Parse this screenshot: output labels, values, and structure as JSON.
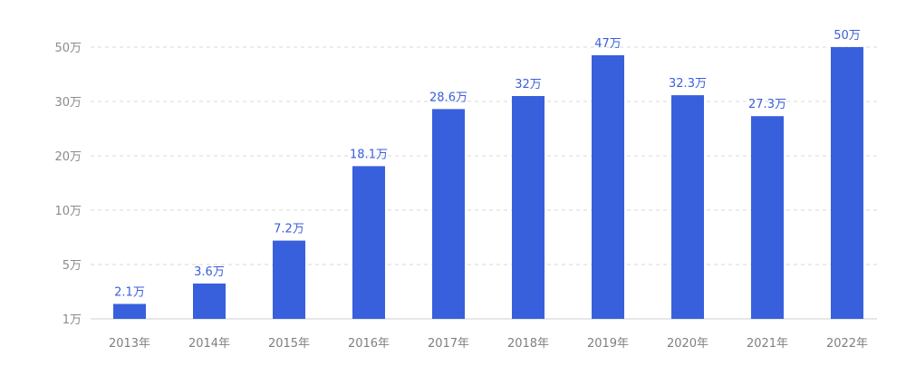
{
  "chart_data": {
    "type": "bar",
    "categories": [
      "2013年",
      "2014年",
      "2015年",
      "2016年",
      "2017年",
      "2018年",
      "2019年",
      "2020年",
      "2021年",
      "2022年"
    ],
    "values": [
      2.1,
      3.6,
      7.2,
      18.1,
      28.6,
      32,
      47,
      32.3,
      27.3,
      50
    ],
    "data_labels": [
      "2.1万",
      "3.6万",
      "7.2万",
      "18.1万",
      "28.6万",
      "32万",
      "47万",
      "32.3万",
      "27.3万",
      "50万"
    ],
    "yticks": [
      {
        "value": 1,
        "label": "1万"
      },
      {
        "value": 5,
        "label": "5万"
      },
      {
        "value": 10,
        "label": "10万"
      },
      {
        "value": 20,
        "label": "20万"
      },
      {
        "value": 30,
        "label": "30万"
      },
      {
        "value": 50,
        "label": "50万"
      }
    ],
    "yaxis_scale": "uneven ticks 1万,5万,10万,20万,30万,50万 at equal spacing",
    "grid": true,
    "colors": {
      "bar": "#3860DD",
      "label": "#3A5FDC",
      "grid": "#D9D9D9",
      "tick": "#8C8C8C"
    },
    "title": "",
    "xlabel": "",
    "ylabel": ""
  }
}
